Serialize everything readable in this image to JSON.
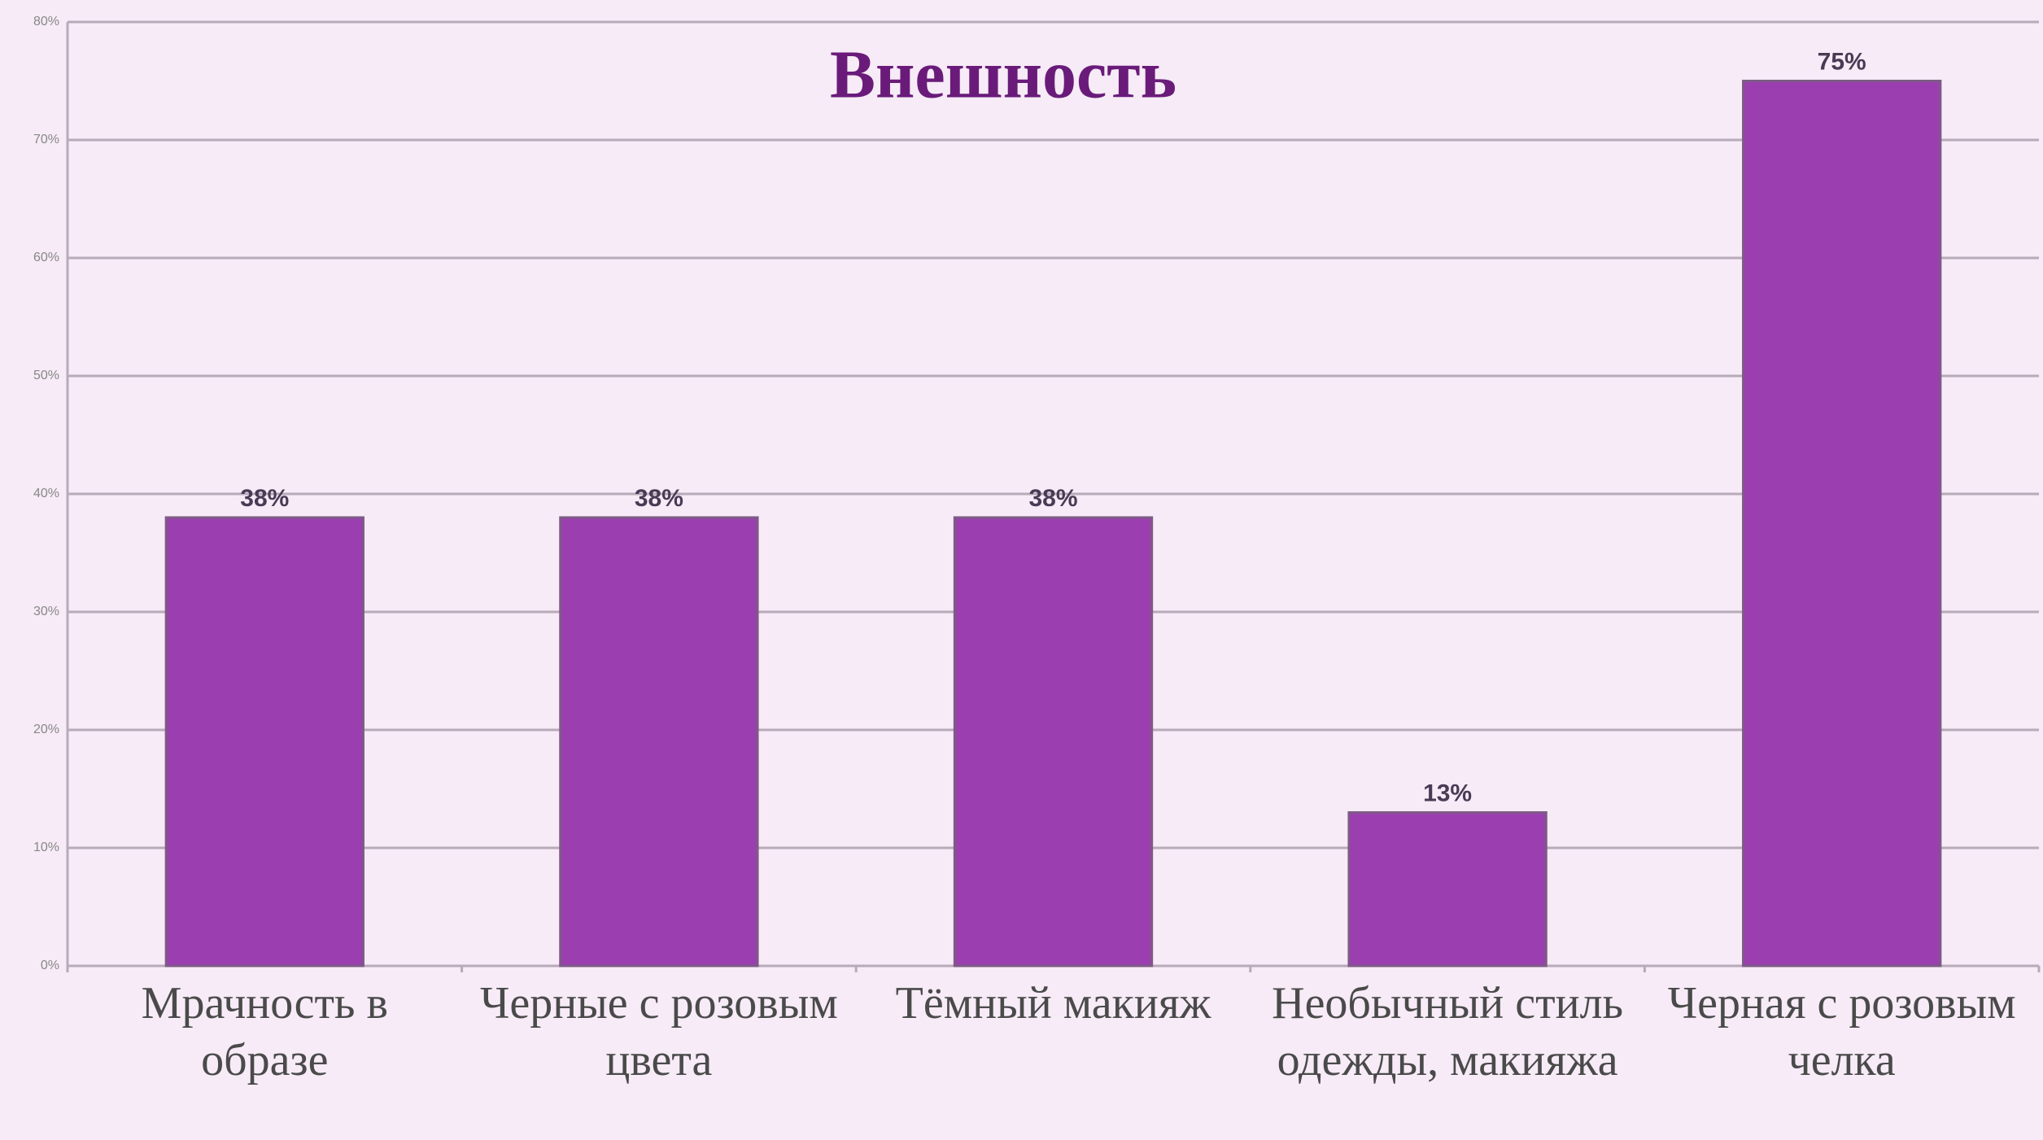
{
  "chart_data": {
    "type": "bar",
    "title": "Внешность",
    "categories": [
      "Мрачность в образе",
      "Черные с розовым цвета",
      "Тёмный макияж",
      "Необычный стиль одежды, макияжа",
      "Черная с розовым челка"
    ],
    "values": [
      38,
      38,
      38,
      13,
      75
    ],
    "value_labels": [
      "38%",
      "38%",
      "38%",
      "13%",
      "75%"
    ],
    "color": "#9b3fb0",
    "ylim": [
      0,
      80
    ],
    "yticks": [
      {
        "value": 0,
        "label": "0%"
      },
      {
        "value": 10,
        "label": "10%"
      },
      {
        "value": 20,
        "label": "20%"
      },
      {
        "value": 30,
        "label": "30%"
      },
      {
        "value": 40,
        "label": "40%"
      },
      {
        "value": 50,
        "label": "50%"
      },
      {
        "value": 60,
        "label": "60%"
      },
      {
        "value": 70,
        "label": "70%"
      },
      {
        "value": 80,
        "label": "80%"
      }
    ],
    "grid": true
  }
}
